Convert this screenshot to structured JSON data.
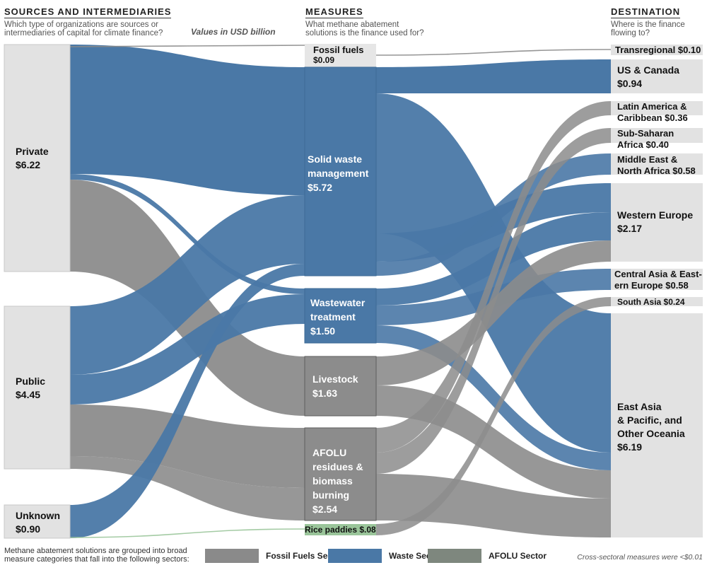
{
  "header": {
    "sources_title": "SOURCES AND INTERMEDIARIES",
    "sources_sub": "Which type of organizations are sources or intermediaries of capital for climate finance?",
    "values_note": "Values in USD billion",
    "measures_title": "MEASURES",
    "measures_sub": "What methane abatement solutions is the finance used for?",
    "destination_title": "DESTINATION",
    "destination_sub": "Where is the finance flowing to?"
  },
  "sources": [
    {
      "name": "Private",
      "value": "$6.22"
    },
    {
      "name": "Public",
      "value": "$4.45"
    },
    {
      "name": "Unknown",
      "value": "$0.90"
    }
  ],
  "measures": [
    {
      "name": "Fossil fuels",
      "value": "$0.09",
      "sector": "fossil"
    },
    {
      "name": "Solid waste management",
      "value": "$5.72",
      "sector": "waste"
    },
    {
      "name": "Wastewater treatment",
      "value": "$1.50",
      "sector": "waste"
    },
    {
      "name": "Livestock",
      "value": "$1.63",
      "sector": "afolu"
    },
    {
      "name": "AFOLU residues & biomass burning",
      "value": "$2.54",
      "sector": "afolu"
    },
    {
      "name": "Rice paddies",
      "value": "$.08",
      "sector": "afolu"
    }
  ],
  "labels": {
    "fossil_line1": "Fossil fuels",
    "fossil_line2": "$0.09",
    "swm_line1": "Solid waste",
    "swm_line2": "management",
    "swm_line3": "$5.72",
    "ww_line1": "Wastewater",
    "ww_line2": "treatment",
    "ww_line3": "$1.50",
    "live_line1": "Livestock",
    "live_line2": "$1.63",
    "afolu_line1": "AFOLU",
    "afolu_line2": "residues &",
    "afolu_line3": "biomass",
    "afolu_line4": "burning",
    "afolu_line5": "$2.54",
    "rice": "Rice paddies $.08",
    "dest_trans": "Transregional $0.10",
    "dest_us_1": "US & Canada",
    "dest_us_2": "$0.94",
    "dest_la_1": "Latin America &",
    "dest_la_2": "Caribbean $0.36",
    "dest_ssa_1": "Sub-Saharan",
    "dest_ssa_2": "Africa $0.40",
    "dest_mena_1": "Middle East &",
    "dest_mena_2": "North Africa $0.58",
    "dest_we_1": "Western Europe",
    "dest_we_2": "$2.17",
    "dest_ca_1": "Central Asia & East-",
    "dest_ca_2": "ern Europe $0.58",
    "dest_sa": "South Asia $0.24",
    "dest_ea_1": "East Asia",
    "dest_ea_2": "& Pacific, and",
    "dest_ea_3": "Other Oceania",
    "dest_ea_4": "$6.19"
  },
  "destinations": [
    {
      "name": "Transregional",
      "value": "$0.10"
    },
    {
      "name": "US & Canada",
      "value": "$0.94"
    },
    {
      "name": "Latin America & Caribbean",
      "value": "$0.36"
    },
    {
      "name": "Sub-Saharan Africa",
      "value": "$0.40"
    },
    {
      "name": "Middle East & North Africa",
      "value": "$0.58"
    },
    {
      "name": "Western Europe",
      "value": "$2.17"
    },
    {
      "name": "Central Asia & Eastern Europe",
      "value": "$0.58"
    },
    {
      "name": "South Asia",
      "value": "$0.24"
    },
    {
      "name": "East Asia & Pacific, and Other Oceania",
      "value": "$6.19"
    }
  ],
  "footer": {
    "grouping_note_1": "Methane abatement solutions are grouped into broad",
    "grouping_note_2": "measure categories that fall into the following sectors:",
    "legend_fossil": "Fossil Fuels Sector",
    "legend_waste": "Waste Sector",
    "legend_afolu": "AFOLU Sector",
    "cross_note": "Cross-sectoral measures were <$0.01"
  },
  "colors": {
    "fossil": "#8a8a8a",
    "waste": "#4a78a6",
    "afolu": "#7e877e",
    "afolu_flow": "#8c8c8c",
    "node_fill": "#e2e2e2",
    "rice": "#9ac59a"
  }
}
